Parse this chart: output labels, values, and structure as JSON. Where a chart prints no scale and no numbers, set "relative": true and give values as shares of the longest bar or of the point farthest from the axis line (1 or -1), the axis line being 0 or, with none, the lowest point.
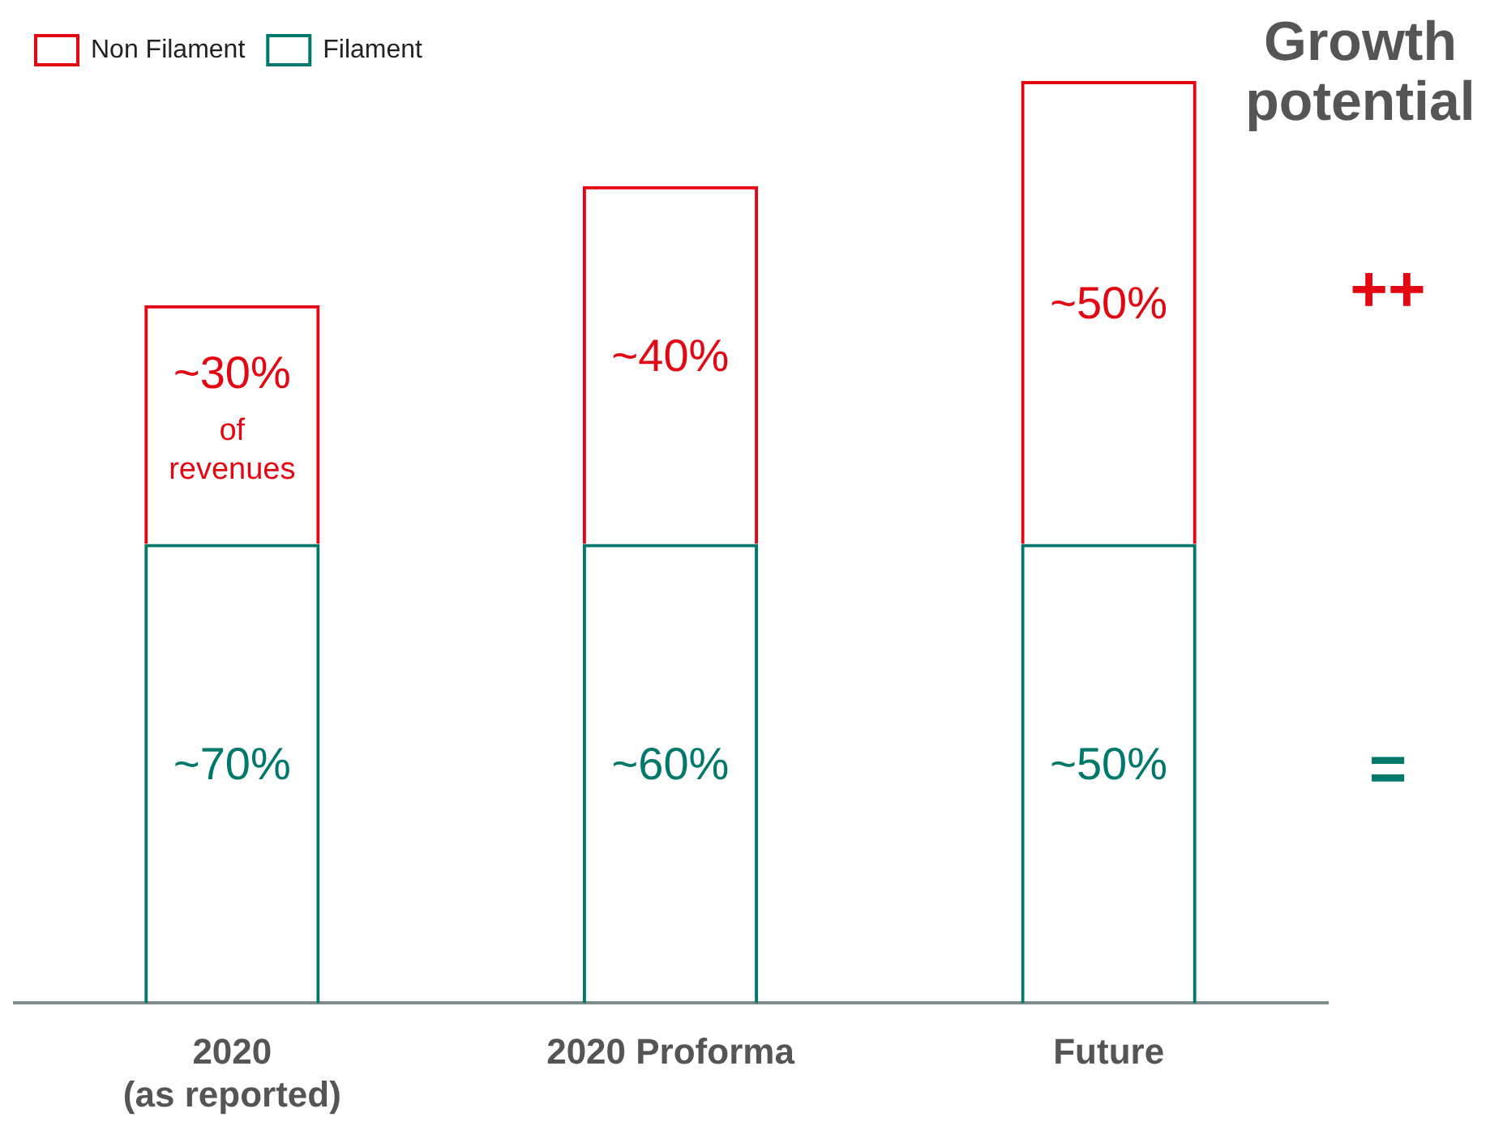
{
  "chart_data": {
    "type": "bar",
    "stacked": true,
    "relative": true,
    "title": "Growth potential",
    "categories": [
      "2020\n(as reported)",
      "2020 Proforma",
      "Future"
    ],
    "series": [
      {
        "name": "Filament",
        "color": "#00796b",
        "values": [
          0.498,
          0.498,
          0.498
        ]
      },
      {
        "name": "Non Filament",
        "color": "#e30613",
        "values": [
          0.259,
          0.388,
          0.502
        ]
      }
    ],
    "legend": "top left",
    "grid": false,
    "annotations": [
      "++",
      "=",
      "~70%",
      "~60%",
      "~50%",
      "~30%\nof\nrevenues",
      "~40%",
      "~50%"
    ]
  }
}
